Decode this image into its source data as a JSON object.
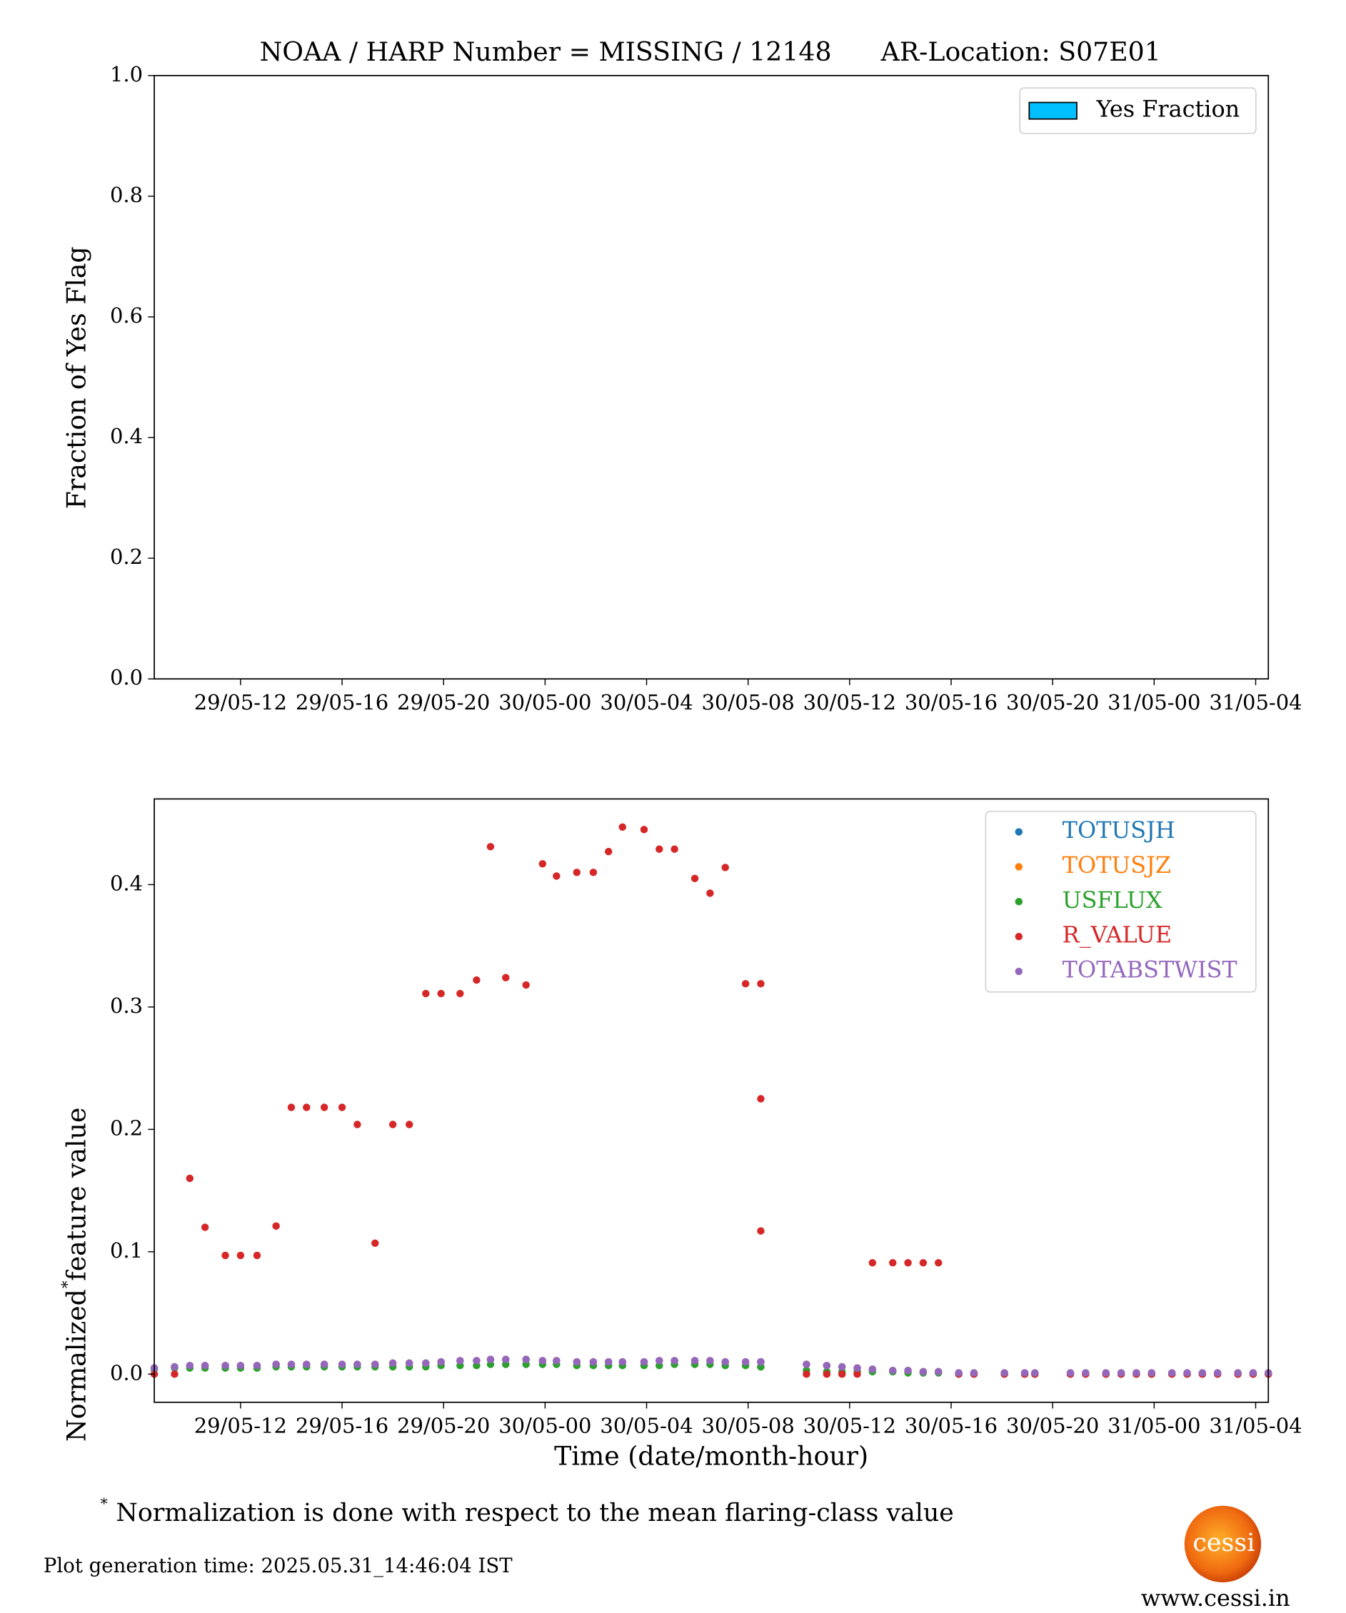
{
  "chart_data": [
    {
      "type": "bar",
      "title": "NOAA / HARP Number = MISSING / 12148      AR-Location: S07E01",
      "ylabel": "Fraction of Yes Flag",
      "series": [
        {
          "name": "Yes Fraction",
          "color": "#00bfff"
        }
      ],
      "legend": "upper right",
      "xlim": [
        8.6,
        52.5
      ],
      "xticks": [
        {
          "value": 12,
          "label": "29/05-12"
        },
        {
          "value": 16,
          "label": "29/05-16"
        },
        {
          "value": 20,
          "label": "29/05-20"
        },
        {
          "value": 24,
          "label": "30/05-00"
        },
        {
          "value": 28,
          "label": "30/05-04"
        },
        {
          "value": 32,
          "label": "30/05-08"
        },
        {
          "value": 36,
          "label": "30/05-12"
        },
        {
          "value": 40,
          "label": "30/05-16"
        },
        {
          "value": 44,
          "label": "30/05-20"
        },
        {
          "value": 48,
          "label": "31/05-00"
        },
        {
          "value": 52,
          "label": "31/05-04"
        }
      ],
      "ylim": [
        0,
        1
      ],
      "yticks": [
        {
          "value": 0,
          "label": "0.0"
        },
        {
          "value": 0.2,
          "label": "0.2"
        },
        {
          "value": 0.4,
          "label": "0.4"
        },
        {
          "value": 0.6,
          "label": "0.6"
        },
        {
          "value": 0.8,
          "label": "0.8"
        },
        {
          "value": 1,
          "label": "1.0"
        }
      ]
    },
    {
      "type": "scatter",
      "xlabel": "Time (date/month-hour)",
      "ylabel": "Normalized feature value",
      "ylabel_marker": "*",
      "legend": "upper right",
      "xlim": [
        8.6,
        52.5
      ],
      "xticks": [
        {
          "value": 12,
          "label": "29/05-12"
        },
        {
          "value": 16,
          "label": "29/05-16"
        },
        {
          "value": 20,
          "label": "29/05-20"
        },
        {
          "value": 24,
          "label": "30/05-00"
        },
        {
          "value": 28,
          "label": "30/05-04"
        },
        {
          "value": 32,
          "label": "30/05-08"
        },
        {
          "value": 36,
          "label": "30/05-12"
        },
        {
          "value": 40,
          "label": "30/05-16"
        },
        {
          "value": 44,
          "label": "30/05-20"
        },
        {
          "value": 48,
          "label": "31/05-00"
        },
        {
          "value": 52,
          "label": "31/05-04"
        }
      ],
      "ylim": [
        -0.023,
        0.47
      ],
      "yticks": [
        {
          "value": 0,
          "label": "0.0"
        },
        {
          "value": 0.1,
          "label": "0.1"
        },
        {
          "value": 0.2,
          "label": "0.2"
        },
        {
          "value": 0.3,
          "label": "0.3"
        },
        {
          "value": 0.4,
          "label": "0.4"
        }
      ],
      "x": [
        8.6,
        9.4,
        10.0,
        10.6,
        11.4,
        12.0,
        12.65,
        13.4,
        14.0,
        14.6,
        15.3,
        16.0,
        16.6,
        17.3,
        18.0,
        18.65,
        19.3,
        19.9,
        20.65,
        21.3,
        21.85,
        22.45,
        23.25,
        23.9,
        24.45,
        25.25,
        25.9,
        26.5,
        27.05,
        27.9,
        28.5,
        29.1,
        29.9,
        30.5,
        31.1,
        31.9,
        32.5,
        32.5,
        32.5,
        34.3,
        35.1,
        35.7,
        36.3,
        36.9,
        37.7,
        38.3,
        38.9,
        39.5,
        40.3,
        40.9,
        42.1,
        42.9,
        43.3,
        44.7,
        45.3,
        46.1,
        46.7,
        47.3,
        47.9,
        48.7,
        49.3,
        49.9,
        50.5,
        51.3,
        51.9,
        52.5
      ],
      "series": [
        {
          "name": "TOTUSJH",
          "color": "#1f77b4",
          "values": [
            0.005,
            0.006,
            0.007,
            0.007,
            0.007,
            0.007,
            0.007,
            0.008,
            0.008,
            0.008,
            0.008,
            0.008,
            0.008,
            0.008,
            0.009,
            0.009,
            0.009,
            0.01,
            0.011,
            0.011,
            0.012,
            0.012,
            0.012,
            0.011,
            0.011,
            0.01,
            0.01,
            0.01,
            0.01,
            0.01,
            0.011,
            0.011,
            0.011,
            0.011,
            0.01,
            0.01,
            0.01,
            0.01,
            0.01,
            0.008,
            0.007,
            0.006,
            0.005,
            0.004,
            0.003,
            0.003,
            0.002,
            0.002,
            0.001,
            0.001,
            0.001,
            0.001,
            0.001,
            0.001,
            0.001,
            0.001,
            0.001,
            0.001,
            0.001,
            0.001,
            0.001,
            0.001,
            0.001,
            0.001,
            0.001,
            0.001
          ]
        },
        {
          "name": "TOTUSJZ",
          "color": "#ff7f0e",
          "values": [
            0.005,
            0.006,
            0.007,
            0.007,
            0.007,
            0.007,
            0.007,
            0.008,
            0.008,
            0.008,
            0.008,
            0.008,
            0.008,
            0.008,
            0.009,
            0.009,
            0.009,
            0.01,
            0.011,
            0.011,
            0.012,
            0.012,
            0.012,
            0.011,
            0.011,
            0.01,
            0.01,
            0.01,
            0.01,
            0.01,
            0.011,
            0.011,
            0.011,
            0.011,
            0.01,
            0.01,
            0.01,
            0.01,
            0.01,
            0.008,
            0.007,
            0.006,
            0.005,
            0.004,
            0.003,
            0.003,
            0.002,
            0.002,
            0.001,
            0.001,
            0.001,
            0.001,
            0.001,
            0.001,
            0.001,
            0.001,
            0.001,
            0.001,
            0.001,
            0.001,
            0.001,
            0.001,
            0.001,
            0.001,
            0.001,
            0.001
          ]
        },
        {
          "name": "USFLUX",
          "color": "#2ca02c",
          "values": [
            0.004,
            0.005,
            0.005,
            0.005,
            0.005,
            0.005,
            0.005,
            0.006,
            0.006,
            0.006,
            0.006,
            0.006,
            0.006,
            0.006,
            0.006,
            0.006,
            0.006,
            0.007,
            0.007,
            0.007,
            0.008,
            0.008,
            0.008,
            0.008,
            0.008,
            0.007,
            0.007,
            0.007,
            0.007,
            0.007,
            0.007,
            0.008,
            0.008,
            0.008,
            0.007,
            0.007,
            0.006,
            0.006,
            0.006,
            0.003,
            0.002,
            0.002,
            0.002,
            0.002,
            0.002,
            0.001,
            0.001,
            0.001,
            0,
            0,
            0,
            0,
            0,
            0,
            0,
            0,
            0,
            0,
            0,
            0,
            0,
            0,
            0,
            0,
            0,
            0
          ]
        },
        {
          "name": "R_VALUE",
          "color": "#d62728",
          "values": [
            0,
            0,
            0.16,
            0.12,
            0.097,
            0.097,
            0.097,
            0.121,
            0.218,
            0.218,
            0.218,
            0.218,
            0.204,
            0.107,
            0.204,
            0.204,
            0.311,
            0.311,
            0.311,
            0.322,
            0.431,
            0.324,
            0.318,
            0.417,
            0.407,
            0.41,
            0.41,
            0.427,
            0.447,
            0.445,
            0.429,
            0.429,
            0.405,
            0.393,
            0.414,
            0.319,
            0.319,
            0.225,
            0.117,
            0,
            0,
            0,
            0,
            0.091,
            0.091,
            0.091,
            0.091,
            0.091,
            0,
            0,
            0,
            0,
            0,
            0,
            0,
            0,
            0,
            0,
            0,
            0,
            0,
            0,
            0,
            0,
            0,
            0
          ]
        },
        {
          "name": "TOTABSTWIST",
          "color": "#9467bd",
          "values": [
            0.005,
            0.006,
            0.007,
            0.007,
            0.007,
            0.007,
            0.007,
            0.008,
            0.008,
            0.008,
            0.008,
            0.008,
            0.008,
            0.008,
            0.009,
            0.009,
            0.009,
            0.01,
            0.011,
            0.011,
            0.012,
            0.012,
            0.012,
            0.011,
            0.011,
            0.01,
            0.01,
            0.01,
            0.01,
            0.01,
            0.011,
            0.011,
            0.011,
            0.011,
            0.01,
            0.01,
            0.01,
            0.01,
            0.01,
            0.008,
            0.007,
            0.006,
            0.005,
            0.004,
            0.003,
            0.003,
            0.002,
            0.002,
            0.001,
            0.001,
            0.001,
            0.001,
            0.001,
            0.001,
            0.001,
            0.001,
            0.001,
            0.001,
            0.001,
            0.001,
            0.001,
            0.001,
            0.001,
            0.001,
            0.001,
            0.001
          ]
        }
      ]
    }
  ],
  "footnote": {
    "marker": "*",
    "text": "Normalization is done with respect to the mean flaring-class value"
  },
  "generation_time": "Plot generation time: 2025.05.31_14:46:04 IST",
  "logo": {
    "text": "cessi",
    "url": "www.cessi.in"
  }
}
